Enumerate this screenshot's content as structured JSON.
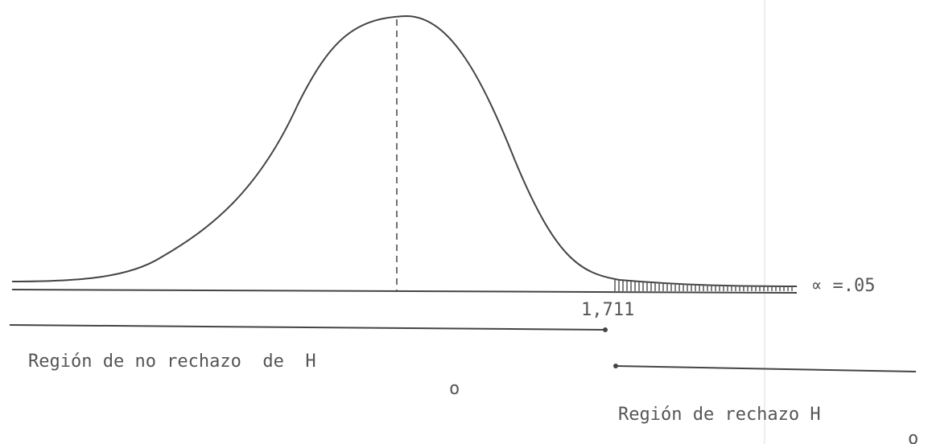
{
  "curve": {
    "alpha_label": "∝ =.05",
    "critical_value": "1,711"
  },
  "regions": [
    {
      "label": "Región de no rechazo  de  H",
      "subscript": "o"
    },
    {
      "label": "Región de rechazo H",
      "subscript": "o"
    }
  ]
}
